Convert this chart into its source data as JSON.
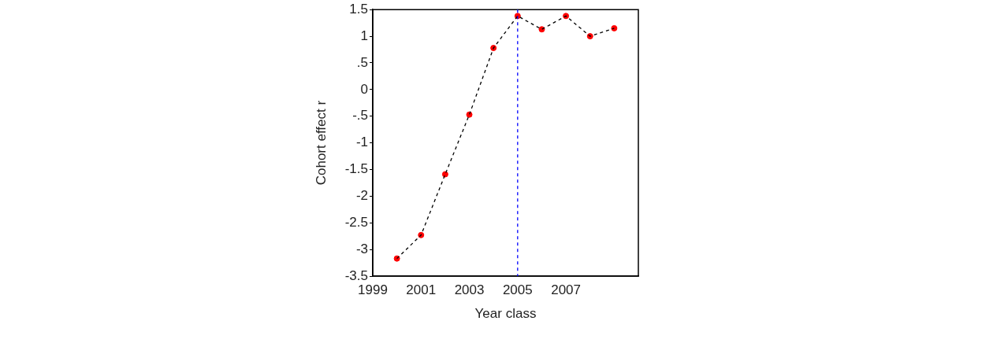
{
  "chart_data": {
    "type": "line",
    "xlabel": "Year class",
    "ylabel": "Cohort effect r",
    "x": [
      2000,
      2001,
      2002,
      2003,
      2004,
      2005,
      2006,
      2007,
      2008,
      2009
    ],
    "series": [
      {
        "type": "line",
        "color": "#000000",
        "marker": "none",
        "line_style": "dashed",
        "values": [
          -3.17,
          -2.73,
          -1.59,
          -0.47,
          0.78,
          1.38,
          1.13,
          1.38,
          1.0,
          1.15
        ]
      },
      {
        "type": "scatter",
        "color": "#ff0000",
        "marker": "circle",
        "values": [
          -3.17,
          -2.73,
          -1.59,
          -0.47,
          0.78,
          1.38,
          1.13,
          1.38,
          1.0,
          1.15
        ]
      }
    ],
    "xlim": [
      1999,
      2010
    ],
    "xticks": [
      1999,
      2001,
      2003,
      2005,
      2007
    ],
    "ylim": [
      -3.5,
      1.5
    ],
    "yticks": [
      -3.5,
      -3,
      -2.5,
      -2,
      -1.5,
      -1,
      {
        "value": -0.5,
        "label": "-.5"
      },
      0,
      {
        "value": 0.5,
        "label": ".5"
      },
      1,
      1.5
    ],
    "ref_lines": [
      {
        "axis": "x",
        "value": 2005,
        "color": "#0000ff",
        "line_style": "dashed"
      }
    ],
    "grid": false,
    "legend": false
  }
}
